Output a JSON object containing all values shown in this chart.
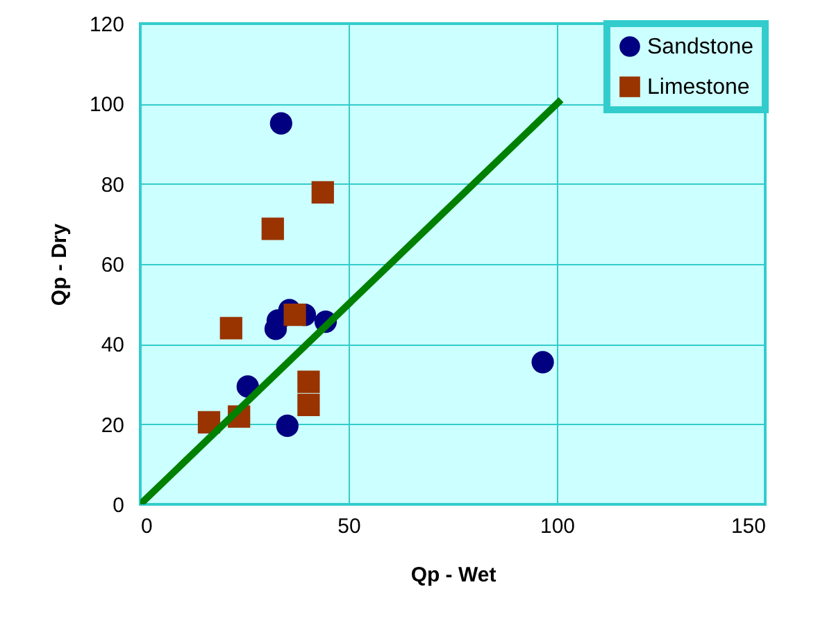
{
  "chart_data": {
    "type": "scatter",
    "xlabel": "Qp - Wet",
    "ylabel": "Qp - Dry",
    "xlim": [
      0,
      150
    ],
    "xticks": [
      0,
      50,
      100,
      150
    ],
    "ylim": [
      0,
      120
    ],
    "yticks": [
      0,
      20,
      40,
      60,
      80,
      100,
      120
    ],
    "grid": true,
    "legend": "top right",
    "series": [
      {
        "name": "Sandstone",
        "color": "#000080",
        "marker": "circle",
        "x": [
          33.8,
          32.5,
          33,
          35.8,
          39.5,
          44.5,
          25.8,
          35.3,
          96.6
        ],
        "values": [
          95.1,
          43.8,
          45.9,
          48.5,
          47.3,
          45.6,
          29.4,
          19.6,
          35.5
        ]
      },
      {
        "name": "Limestone",
        "color": "#993300",
        "marker": "square",
        "x": [
          43.8,
          31.8,
          21.8,
          37.1,
          40.4,
          40.4,
          23.7,
          16.5
        ],
        "values": [
          77.9,
          68.8,
          44.0,
          47.3,
          30.6,
          24.8,
          21.9,
          20.5
        ]
      },
      {
        "type": "line",
        "color": "#008000",
        "x": [
          0,
          101
        ],
        "values": [
          0,
          101
        ]
      }
    ]
  }
}
